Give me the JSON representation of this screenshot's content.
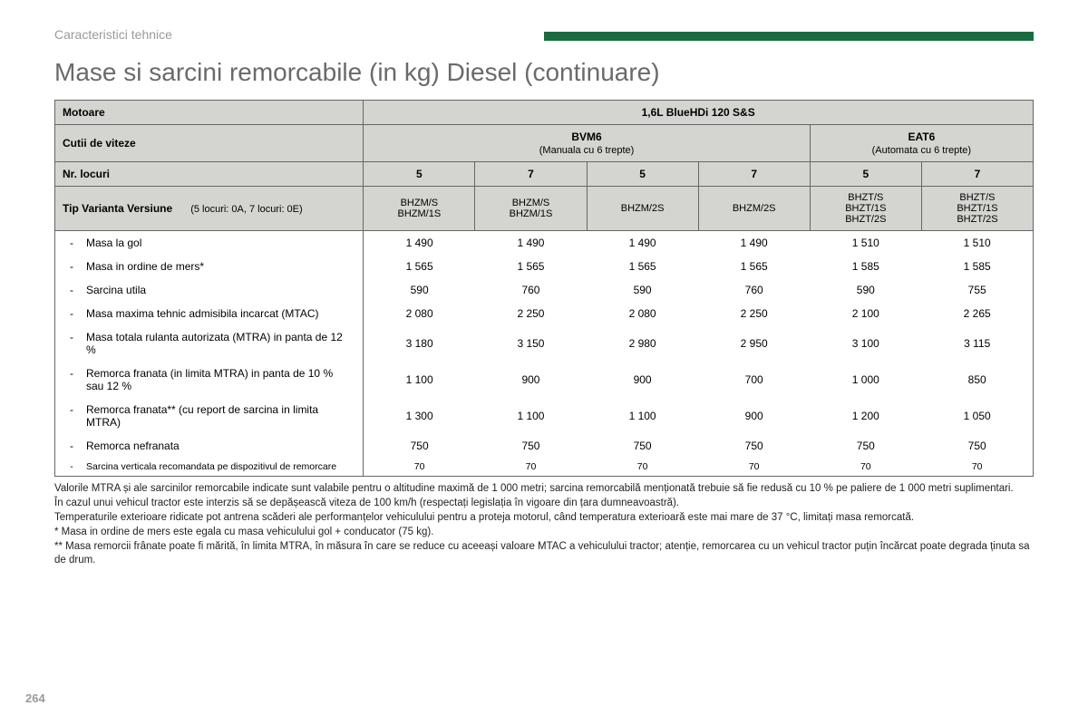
{
  "section_label": "Caracteristici tehnice",
  "title": "Mase si sarcini remorcabile (in kg) Diesel (continuare)",
  "header_bar_color": "#1a6b3f",
  "table": {
    "row_motoare_label": "Motoare",
    "row_motoare_value": "1,6L BlueHDi 120 S&S",
    "row_cutii_label": "Cutii de viteze",
    "gearbox": [
      {
        "name": "BVM6",
        "sub": "(Manuala cu 6 trepte)"
      },
      {
        "name": "EAT6",
        "sub": "(Automata cu 6 trepte)"
      }
    ],
    "row_locuri_label": "Nr. locuri",
    "seats": [
      "5",
      "7",
      "5",
      "7",
      "5",
      "7"
    ],
    "row_tip_label": "Tip Varianta Versiune",
    "row_tip_sub": "(5 locuri: 0A, 7 locuri: 0E)",
    "variants": [
      "BHZM/S\nBHZM/1S",
      "BHZM/S\nBHZM/1S",
      "BHZM/2S",
      "BHZM/2S",
      "BHZT/S\nBHZT/1S\nBHZT/2S",
      "BHZT/S\nBHZT/1S\nBHZT/2S"
    ],
    "rows": [
      {
        "label": "Masa la gol",
        "v": [
          "1 490",
          "1 490",
          "1 490",
          "1 490",
          "1 510",
          "1 510"
        ]
      },
      {
        "label": "Masa in ordine de mers*",
        "v": [
          "1 565",
          "1 565",
          "1 565",
          "1 565",
          "1 585",
          "1 585"
        ]
      },
      {
        "label": "Sarcina utila",
        "v": [
          "590",
          "760",
          "590",
          "760",
          "590",
          "755"
        ]
      },
      {
        "label": "Masa maxima tehnic admisibila incarcat (MTAC)",
        "v": [
          "2 080",
          "2 250",
          "2 080",
          "2 250",
          "2 100",
          "2 265"
        ]
      },
      {
        "label": "Masa totala rulanta autorizata (MTRA) in panta de 12 %",
        "v": [
          "3 180",
          "3 150",
          "2 980",
          "2 950",
          "3 100",
          "3 115"
        ]
      },
      {
        "label": "Remorca franata (in limita MTRA) in panta de 10 % sau 12 %",
        "v": [
          "1 100",
          "900",
          "900",
          "700",
          "1 000",
          "850"
        ]
      },
      {
        "label": "Remorca franata** (cu report de sarcina in limita MTRA)",
        "v": [
          "1 300",
          "1 100",
          "1 100",
          "900",
          "1 200",
          "1 050"
        ]
      },
      {
        "label": "Remorca nefranata",
        "v": [
          "750",
          "750",
          "750",
          "750",
          "750",
          "750"
        ]
      },
      {
        "label": "Sarcina verticala recomandata pe dispozitivul de remorcare",
        "v": [
          "70",
          "70",
          "70",
          "70",
          "70",
          "70"
        ],
        "small": true
      }
    ]
  },
  "footnotes": [
    "Valorile MTRA și ale sarcinilor remorcabile indicate sunt valabile pentru o altitudine maximă de 1 000 metri; sarcina remorcabilă menționată trebuie să fie redusă cu 10 % pe paliere de 1 000 metri suplimentari.",
    "În cazul unui vehicul tractor este interzis să se depășească viteza de 100 km/h (respectați legislația în vigoare din țara dumneavoastră).",
    "Temperaturile exterioare ridicate pot antrena scăderi ale performanțelor vehiculului pentru a proteja motorul, când temperatura exterioară este mai mare de 37 °C, limitați masa remorcată.",
    "* Masa in ordine de mers este egala cu masa vehiculului gol + conducator (75 kg).",
    "** Masa remorcii frânate poate fi mărită, în limita MTRA, în măsura în care se reduce cu aceeași valoare MTAC a vehiculului tractor; atenție, remorcarea cu un vehicul tractor puțin încărcat poate degrada ținuta sa de drum."
  ],
  "page_number": "264"
}
